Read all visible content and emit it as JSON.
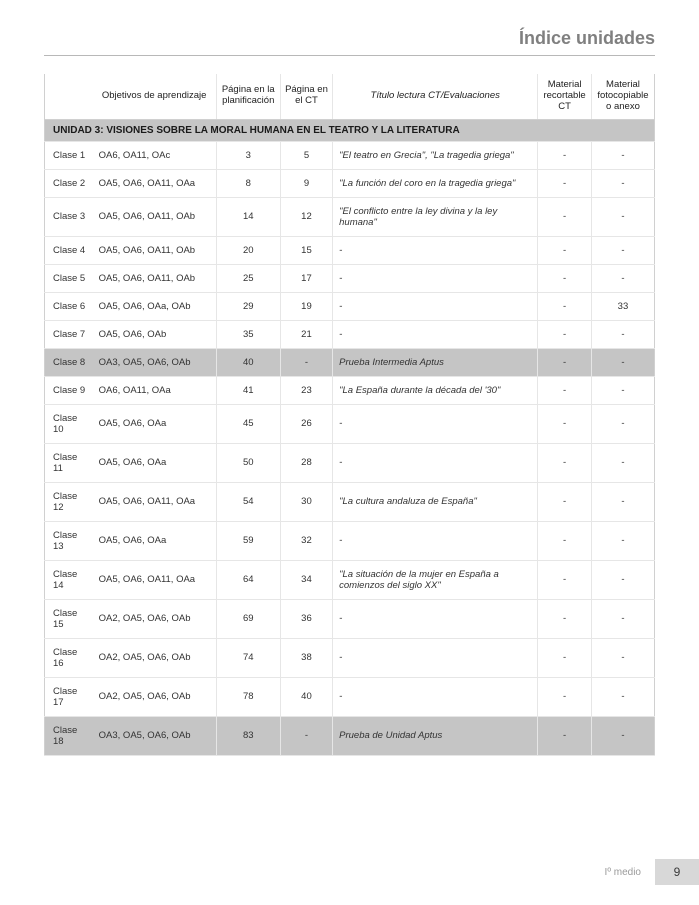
{
  "page": {
    "title": "Índice unidades",
    "footer_label": "Iº medio",
    "page_number": "9"
  },
  "table": {
    "headers": {
      "clase": "",
      "objetivos": "Objetivos de aprendizaje",
      "plan": "Página en la planificación",
      "ct": "Página en el CT",
      "titulo": "Título lectura CT/Evaluaciones",
      "recortable": "Material recortable CT",
      "fotocopiable": "Material fotocopiable o anexo"
    },
    "unit_header": "UNIDAD 3:  VISIONES SOBRE LA MORAL HUMANA EN EL TEATRO Y LA LITERATURA",
    "rows": [
      {
        "clase": "Clase 1",
        "obj": "OA6, OA11, OAc",
        "plan": "3",
        "ct": "5",
        "titulo": "\"El teatro en Grecia\", \"La tragedia griega\"",
        "rec": "-",
        "foto": "-",
        "shaded": false
      },
      {
        "clase": "Clase 2",
        "obj": "OA5, OA6, OA11, OAa",
        "plan": "8",
        "ct": "9",
        "titulo": "\"La función del coro en la tragedia griega\"",
        "rec": "-",
        "foto": "-",
        "shaded": false
      },
      {
        "clase": "Clase 3",
        "obj": " OA5, OA6, OA11, OAb",
        "plan": "14",
        "ct": "12",
        "titulo": "\"El conflicto entre la ley divina y la ley humana\"",
        "rec": "-",
        "foto": "-",
        "shaded": false
      },
      {
        "clase": "Clase 4",
        "obj": "OA5, OA6, OA11, OAb",
        "plan": "20",
        "ct": "15",
        "titulo": "-",
        "rec": "-",
        "foto": "-",
        "shaded": false
      },
      {
        "clase": "Clase 5",
        "obj": "OA5, OA6, OA11, OAb",
        "plan": "25",
        "ct": "17",
        "titulo": "-",
        "rec": "-",
        "foto": "-",
        "shaded": false
      },
      {
        "clase": "Clase 6",
        "obj": "OA5, OA6, OAa,  OAb",
        "plan": "29",
        "ct": "19",
        "titulo": "-",
        "rec": "-",
        "foto": "33",
        "shaded": false
      },
      {
        "clase": "Clase 7",
        "obj": "OA5, OA6, OAb",
        "plan": "35",
        "ct": "21",
        "titulo": "-",
        "rec": "-",
        "foto": "-",
        "shaded": false
      },
      {
        "clase": "Clase 8",
        "obj": "OA3, OA5, OA6, OAb",
        "plan": "40",
        "ct": "-",
        "titulo": "Prueba Intermedia Aptus",
        "rec": "-",
        "foto": "-",
        "shaded": true
      },
      {
        "clase": "Clase 9",
        "obj": "OA6, OA11, OAa",
        "plan": "41",
        "ct": "23",
        "titulo": "\"La España durante la década del '30\"",
        "rec": "-",
        "foto": "-",
        "shaded": false
      },
      {
        "clase": "Clase 10",
        "obj": "OA5, OA6, OAa",
        "plan": "45",
        "ct": "26",
        "titulo": "-",
        "rec": "-",
        "foto": "-",
        "shaded": false
      },
      {
        "clase": "Clase 11",
        "obj": "OA5, OA6, OAa",
        "plan": "50",
        "ct": "28",
        "titulo": "-",
        "rec": "-",
        "foto": "-",
        "shaded": false
      },
      {
        "clase": "Clase 12",
        "obj": "OA5, OA6, OA11, OAa",
        "plan": "54",
        "ct": "30",
        "titulo": "\"La cultura andaluza de España\"",
        "rec": "-",
        "foto": "-",
        "shaded": false
      },
      {
        "clase": "Clase 13",
        "obj": "OA5, OA6, OAa",
        "plan": "59",
        "ct": "32",
        "titulo": "-",
        "rec": "-",
        "foto": "-",
        "shaded": false
      },
      {
        "clase": "Clase 14",
        "obj": "OA5, OA6, OA11, OAa",
        "plan": "64",
        "ct": "34",
        "titulo": "\"La situación de la mujer en España a comienzos del siglo XX\"",
        "rec": "-",
        "foto": "-",
        "shaded": false
      },
      {
        "clase": "Clase 15",
        "obj": "OA2, OA5, OA6, OAb",
        "plan": "69",
        "ct": "36",
        "titulo": "-",
        "rec": "-",
        "foto": "-",
        "shaded": false
      },
      {
        "clase": "Clase 16",
        "obj": "OA2, OA5, OA6, OAb",
        "plan": "74",
        "ct": "38",
        "titulo": "-",
        "rec": "-",
        "foto": "-",
        "shaded": false
      },
      {
        "clase": "Clase 17",
        "obj": "OA2, OA5, OA6, OAb",
        "plan": "78",
        "ct": "40",
        "titulo": "-",
        "rec": "-",
        "foto": "-",
        "shaded": false
      },
      {
        "clase": "Clase 18",
        "obj": "OA3, OA5, OA6, OAb",
        "plan": "83",
        "ct": "-",
        "titulo": "Prueba  de Unidad Aptus",
        "rec": "-",
        "foto": "-",
        "shaded": true
      }
    ]
  }
}
